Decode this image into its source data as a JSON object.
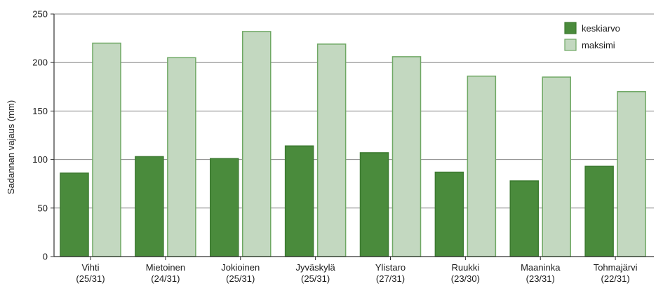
{
  "chart_data": {
    "type": "bar",
    "ylabel": "Sadannan vajaus (mm)",
    "ylim": [
      0,
      250
    ],
    "yticks": [
      0,
      50,
      100,
      150,
      200,
      250
    ],
    "grid": true,
    "legend_position": "top-right",
    "categories": [
      {
        "name": "Vihti",
        "sub": "(25/31)"
      },
      {
        "name": "Mietoinen",
        "sub": "(24/31)"
      },
      {
        "name": "Jokioinen",
        "sub": "(25/31)"
      },
      {
        "name": "Jyväskylä",
        "sub": "(25/31)"
      },
      {
        "name": "Ylistaro",
        "sub": "(27/31)"
      },
      {
        "name": "Ruukki",
        "sub": "(23/30)"
      },
      {
        "name": "Maaninka",
        "sub": "(23/31)"
      },
      {
        "name": "Tohmajärvi",
        "sub": "(22/31)"
      }
    ],
    "series": [
      {
        "name": "keskiarvo",
        "color": "#4a8b3c",
        "values": [
          86,
          103,
          101,
          114,
          107,
          87,
          78,
          93
        ]
      },
      {
        "name": "maksimi",
        "color": "#c3d8c0",
        "values": [
          220,
          205,
          232,
          219,
          206,
          186,
          185,
          170
        ]
      }
    ]
  }
}
